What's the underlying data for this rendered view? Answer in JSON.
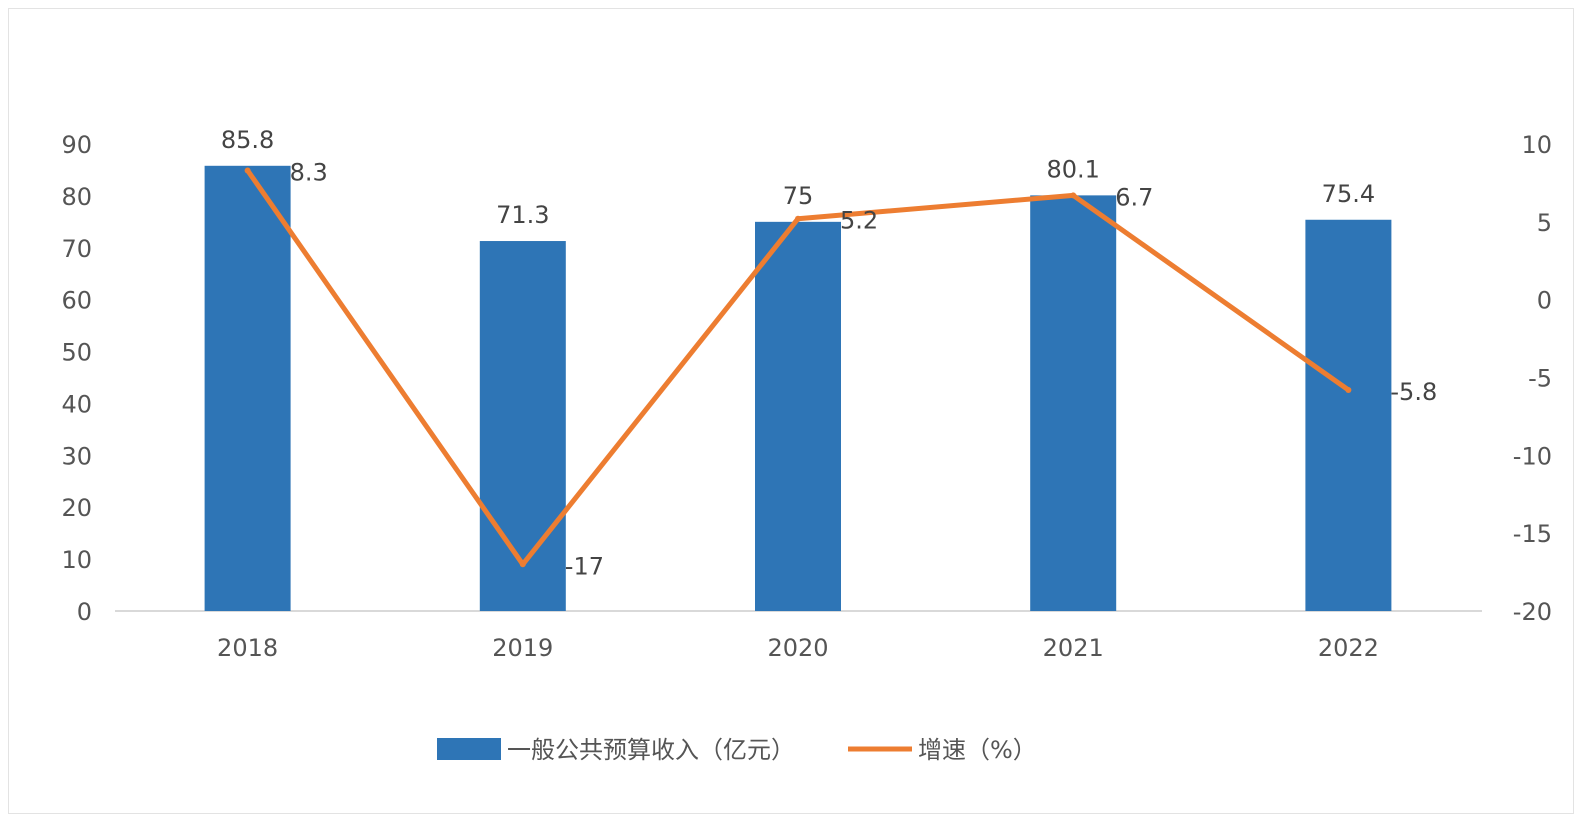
{
  "chart_data": {
    "type": "bar",
    "categories": [
      "2018",
      "2019",
      "2020",
      "2021",
      "2022"
    ],
    "series": [
      {
        "name": "一般公共预算收入（亿元）",
        "type": "bar",
        "axis": "left",
        "values": [
          85.8,
          71.3,
          75,
          80.1,
          75.4
        ],
        "labels": [
          "85.8",
          "71.3",
          "75",
          "80.1",
          "75.4"
        ],
        "color": "#2e75b6"
      },
      {
        "name": "增速（%）",
        "type": "line",
        "axis": "right",
        "values": [
          8.3,
          -17,
          5.2,
          6.7,
          -5.8
        ],
        "labels": [
          "8.3",
          "-17",
          "5.2",
          "6.7",
          "-5.8"
        ],
        "color": "#ed7d31"
      }
    ],
    "y_left": {
      "ylim": [
        0,
        90
      ],
      "ticks": [
        "0",
        "10",
        "20",
        "30",
        "40",
        "50",
        "60",
        "70",
        "80",
        "90"
      ]
    },
    "y_right": {
      "ylim": [
        -20,
        10
      ],
      "ticks": [
        "-20",
        "-15",
        "-10",
        "-5",
        "0",
        "5",
        "10"
      ]
    },
    "title": "",
    "xlabel": "",
    "ylabel": "",
    "grid": false,
    "legend_position": "bottom"
  }
}
